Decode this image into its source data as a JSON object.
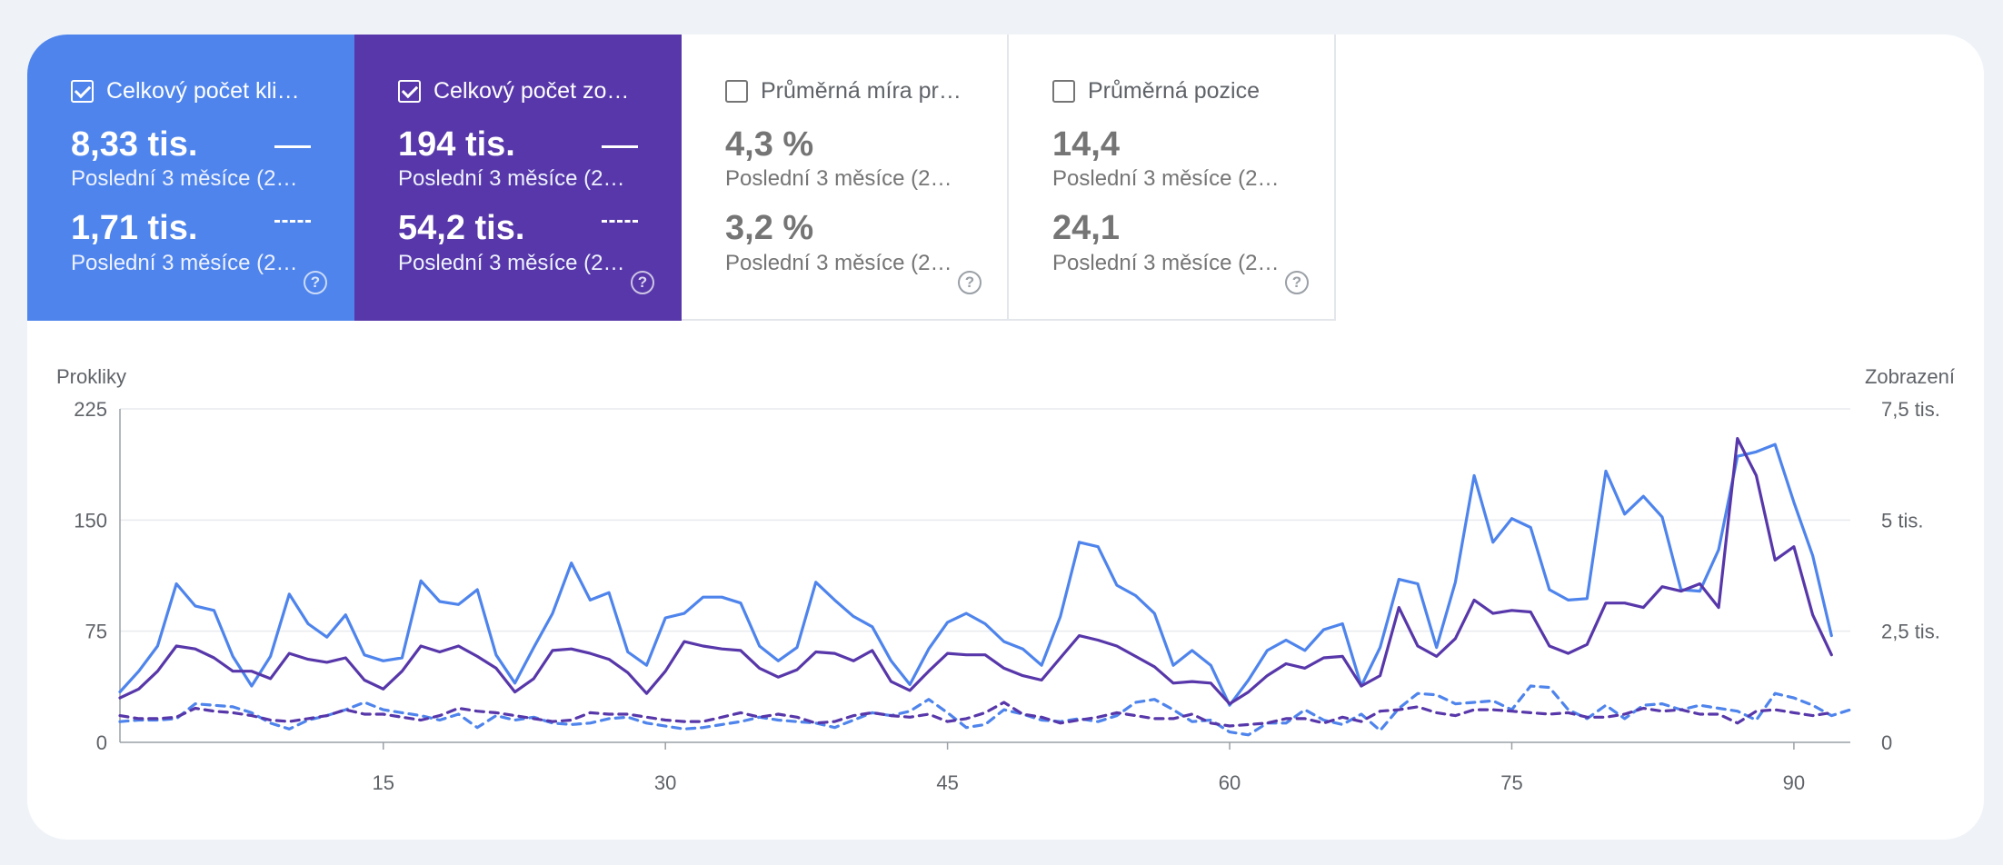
{
  "metrics": [
    {
      "id": "clicks",
      "title": "Celkový počet kli…",
      "checked": true,
      "value1": "8,33 tis.",
      "sub1": "Poslední 3 měsíce (2…",
      "value2": "1,71 tis.",
      "sub2": "Poslední 3 měsíce (2…"
    },
    {
      "id": "impr",
      "title": "Celkový počet zo…",
      "checked": true,
      "value1": "194 tis.",
      "sub1": "Poslední 3 měsíce (2…",
      "value2": "54,2 tis.",
      "sub2": "Poslední 3 měsíce (2…"
    },
    {
      "id": "ctr",
      "title": "Průměrná míra pr…",
      "checked": false,
      "value1": "4,3 %",
      "sub1": "Poslední 3 měsíce (2…",
      "value2": "3,2 %",
      "sub2": "Poslední 3 měsíce (2…"
    },
    {
      "id": "pos",
      "title": "Průměrná pozice",
      "checked": false,
      "value1": "14,4",
      "sub1": "Poslední 3 měsíce (2…",
      "value2": "24,1",
      "sub2": "Poslední 3 měsíce (2…"
    }
  ],
  "help_glyph": "?",
  "colors": {
    "clicks": "#4e84ec",
    "impressions": "#5737a9",
    "ctr_bg": "#ffffff",
    "page_bg": "#eff3f8"
  },
  "chart_data": {
    "type": "line",
    "ylabel_left": "Prokliky",
    "ylabel_right": "Zobrazení",
    "y_left_ticks": [
      "0",
      "75",
      "150",
      "225"
    ],
    "y_right_ticks": [
      "0",
      "2,5 tis.",
      "5 tis.",
      "7,5 tis."
    ],
    "ylim_left": [
      0,
      225
    ],
    "ylim_right": [
      0,
      7500
    ],
    "x_ticks": [
      15,
      30,
      45,
      60,
      75,
      90
    ],
    "xlim": [
      1,
      93
    ],
    "grid": true,
    "legend": "none",
    "series": [
      {
        "metric": "clicks",
        "period": "current",
        "axis": "left",
        "style": "solid",
        "color": "#4e84ec",
        "values": [
          34,
          48,
          65,
          107,
          92,
          89,
          58,
          38,
          58,
          100,
          80,
          71,
          86,
          59,
          55,
          57,
          109,
          95,
          93,
          103,
          59,
          40,
          64,
          87,
          121,
          96,
          101,
          61,
          52,
          84,
          87,
          98,
          98,
          94,
          65,
          55,
          64,
          108,
          96,
          85,
          78,
          55,
          39,
          63,
          81,
          87,
          80,
          68,
          63,
          52,
          85,
          135,
          132,
          106,
          99,
          87,
          52,
          62,
          52,
          25,
          42,
          62,
          69,
          62,
          76,
          80,
          38,
          64,
          110,
          107,
          64,
          108,
          180,
          135,
          151,
          145,
          103,
          96,
          97,
          183,
          154,
          166,
          152,
          103,
          102,
          130,
          193,
          196,
          201,
          162,
          126,
          72
        ]
      },
      {
        "metric": "impressions",
        "period": "current",
        "axis": "right",
        "style": "solid",
        "color": "#5737a9",
        "values": [
          1000,
          1200,
          1600,
          2167,
          2100,
          1900,
          1600,
          1600,
          1433,
          2000,
          1867,
          1800,
          1900,
          1400,
          1200,
          1600,
          2167,
          2033,
          2167,
          1933,
          1667,
          1133,
          1433,
          2067,
          2100,
          2000,
          1867,
          1567,
          1100,
          1600,
          2267,
          2167,
          2100,
          2067,
          1667,
          1467,
          1633,
          2033,
          2000,
          1833,
          2067,
          1367,
          1167,
          1600,
          2000,
          1967,
          1967,
          1667,
          1500,
          1400,
          1900,
          2400,
          2300,
          2167,
          1933,
          1700,
          1333,
          1367,
          1333,
          867,
          1133,
          1500,
          1767,
          1667,
          1900,
          1933,
          1267,
          1500,
          3033,
          2167,
          1933,
          2333,
          3200,
          2900,
          2967,
          2933,
          2167,
          2000,
          2200,
          3133,
          3133,
          3033,
          3500,
          3400,
          3567,
          3033,
          6833,
          6000,
          4100,
          4400,
          2867,
          1967
        ]
      },
      {
        "metric": "clicks",
        "period": "previous",
        "axis": "left",
        "style": "dashed",
        "color": "#4e84ec",
        "values": [
          14,
          15,
          15,
          16,
          26,
          25,
          24,
          20,
          13,
          9,
          15,
          18,
          22,
          27,
          22,
          20,
          18,
          15,
          19,
          10,
          18,
          15,
          17,
          13,
          12,
          13,
          16,
          17,
          13,
          11,
          9,
          10,
          12,
          14,
          17,
          15,
          14,
          13,
          10,
          15,
          20,
          18,
          21,
          29,
          20,
          10,
          12,
          22,
          19,
          15,
          14,
          16,
          14,
          18,
          27,
          29,
          22,
          14,
          15,
          7,
          5,
          13,
          13,
          22,
          15,
          12,
          19,
          8,
          23,
          33,
          32,
          26,
          27,
          28,
          22,
          38,
          37,
          22,
          16,
          25,
          16,
          25,
          26,
          22,
          25,
          23,
          21,
          15,
          33,
          30,
          25,
          18,
          22
        ]
      },
      {
        "metric": "impressions",
        "period": "previous",
        "axis": "right",
        "style": "dashed",
        "color": "#5737a9",
        "values": [
          600,
          533,
          533,
          567,
          767,
          700,
          667,
          600,
          500,
          467,
          533,
          600,
          733,
          633,
          633,
          567,
          500,
          600,
          767,
          700,
          667,
          600,
          533,
          467,
          500,
          667,
          633,
          633,
          567,
          500,
          467,
          467,
          567,
          667,
          567,
          633,
          567,
          433,
          467,
          600,
          667,
          600,
          567,
          633,
          467,
          533,
          667,
          900,
          633,
          567,
          433,
          500,
          567,
          667,
          600,
          533,
          533,
          633,
          433,
          367,
          400,
          433,
          533,
          533,
          433,
          567,
          467,
          700,
          733,
          800,
          667,
          600,
          733,
          733,
          700,
          667,
          633,
          667,
          567,
          567,
          633,
          767,
          700,
          733,
          633,
          633,
          433,
          700,
          733,
          667,
          600,
          667
        ]
      }
    ]
  }
}
